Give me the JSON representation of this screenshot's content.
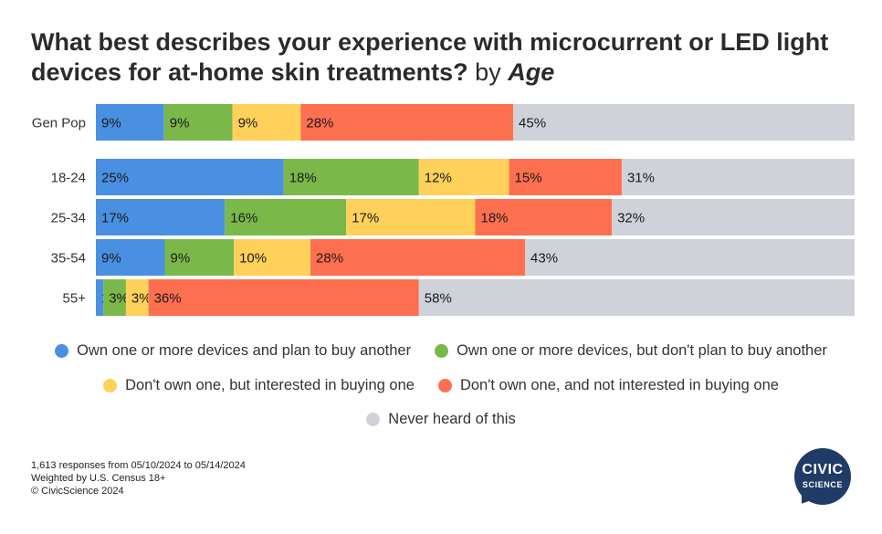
{
  "title": {
    "main": "What best describes your experience with microcurrent or LED light devices for at-home skin treatments?",
    "by": "by",
    "dimension": "Age"
  },
  "chart_data": {
    "type": "bar",
    "orientation": "horizontal",
    "stacked": true,
    "normalized": true,
    "title": "What best describes your experience with microcurrent or LED light devices for at-home skin treatments? by Age",
    "categories": [
      "Gen Pop",
      "18-24",
      "25-34",
      "35-54",
      "55+"
    ],
    "series": [
      {
        "name": "Own one or more devices and plan to buy another",
        "color": "#4a90e2",
        "values": [
          9,
          25,
          17,
          9,
          1
        ]
      },
      {
        "name": "Own one or more devices, but don't plan to buy another",
        "color": "#7ab84a",
        "values": [
          9,
          18,
          16,
          9,
          3
        ]
      },
      {
        "name": "Don't own one, but interested in buying one",
        "color": "#ffd15a",
        "values": [
          9,
          12,
          17,
          10,
          3
        ]
      },
      {
        "name": "Don't own one, and not interested in buying one",
        "color": "#fe6f4f",
        "values": [
          28,
          15,
          18,
          28,
          36
        ]
      },
      {
        "name": "Never heard of this",
        "color": "#cfd2d9",
        "values": [
          45,
          31,
          32,
          43,
          58
        ]
      }
    ],
    "xlim": [
      0,
      100
    ],
    "legend_position": "bottom",
    "grid": false
  },
  "legend_labels": {
    "s0": "Own one or more devices and plan to buy another",
    "s1": "Own one or more devices, but don't plan to buy another",
    "s2": "Don't own one, but interested in buying one",
    "s3": "Don't own one, and not interested in buying one",
    "s4": "Never heard of this"
  },
  "footnotes": {
    "responses": "1,613 responses from 05/10/2024 to 05/14/2024",
    "weighting": "Weighted by U.S. Census 18+",
    "copyright": "© CivicScience 2024"
  },
  "logo": {
    "line1": "CIVIC",
    "line2": "SCIENCE"
  }
}
